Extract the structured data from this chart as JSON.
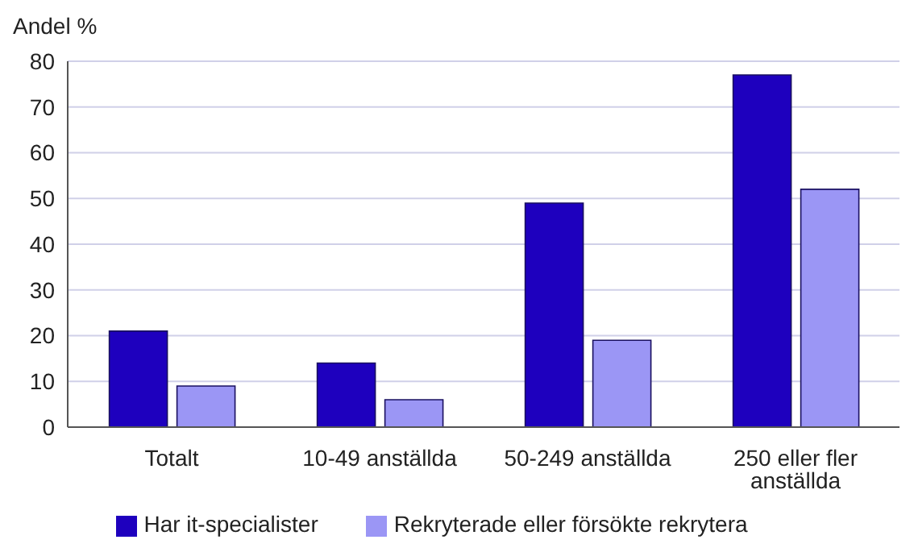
{
  "chart_data": {
    "type": "bar",
    "ylabel": "Andel %",
    "categories": [
      "Totalt",
      "10-49 anställda",
      "50-249 anställda",
      "250 eller fler anställda"
    ],
    "series": [
      {
        "name": "Har it-specialister",
        "color": "#1e00be",
        "values": [
          21,
          14,
          49,
          77
        ]
      },
      {
        "name": "Rekryterade eller försökte rekrytera",
        "color": "#9b96f5",
        "values": [
          9,
          6,
          19,
          52
        ]
      }
    ],
    "ylim": [
      0,
      80
    ],
    "yticks": [
      0,
      10,
      20,
      30,
      40,
      50,
      60,
      70,
      80
    ],
    "grid": "y",
    "legend": "bottom"
  }
}
